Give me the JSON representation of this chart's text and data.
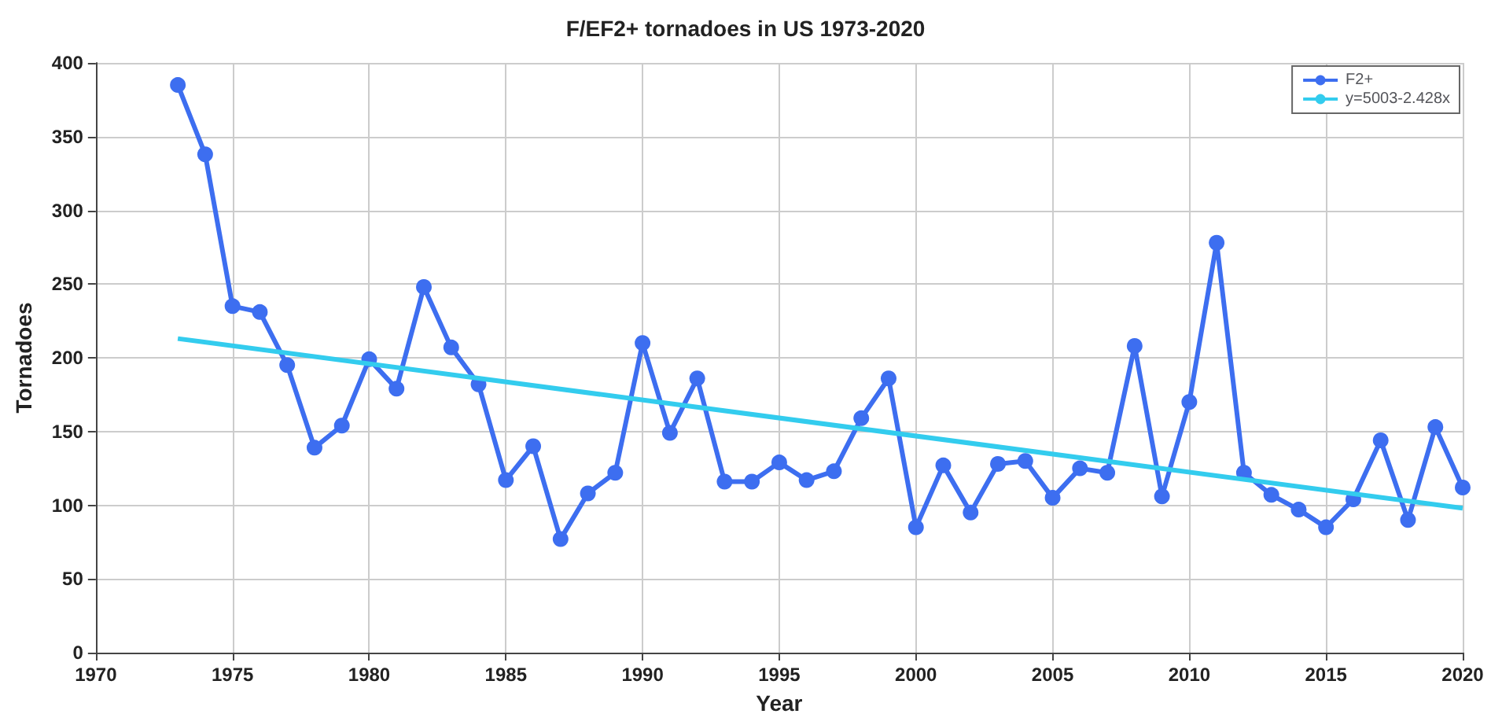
{
  "chart_data": {
    "type": "line",
    "title": "F/EF2+ tornadoes in US 1973-2020",
    "xlabel": "Year",
    "ylabel": "Tornadoes",
    "x": [
      1973,
      1974,
      1975,
      1976,
      1977,
      1978,
      1979,
      1980,
      1981,
      1982,
      1983,
      1984,
      1985,
      1986,
      1987,
      1988,
      1989,
      1990,
      1991,
      1992,
      1993,
      1994,
      1995,
      1996,
      1997,
      1998,
      1999,
      2000,
      2001,
      2002,
      2003,
      2004,
      2005,
      2006,
      2007,
      2008,
      2009,
      2010,
      2011,
      2012,
      2013,
      2014,
      2015,
      2016,
      2017,
      2018,
      2019,
      2020
    ],
    "series": [
      {
        "name": "F2+",
        "color": "#3d6ef0",
        "marker": "circle",
        "values": [
          385,
          338,
          235,
          231,
          195,
          139,
          154,
          199,
          179,
          248,
          207,
          182,
          117,
          140,
          77,
          108,
          122,
          210,
          149,
          186,
          116,
          116,
          129,
          117,
          123,
          159,
          186,
          85,
          127,
          95,
          128,
          130,
          105,
          125,
          122,
          208,
          106,
          170,
          278,
          122,
          107,
          97,
          85,
          104,
          144,
          90,
          153,
          112
        ]
      },
      {
        "name": "y=5003-2.428x",
        "color": "#33ccee",
        "marker": "none",
        "x": [
          1973,
          2020
        ],
        "values": [
          213,
          98
        ]
      }
    ],
    "xlim": [
      1970,
      2020
    ],
    "xticks": [
      1970,
      1975,
      1980,
      1985,
      1990,
      1995,
      2000,
      2005,
      2010,
      2015,
      2020
    ],
    "ylim": [
      0,
      400
    ],
    "yticks": [
      0,
      50,
      100,
      150,
      200,
      250,
      300,
      350,
      400
    ],
    "grid": true,
    "legend": "top right"
  }
}
